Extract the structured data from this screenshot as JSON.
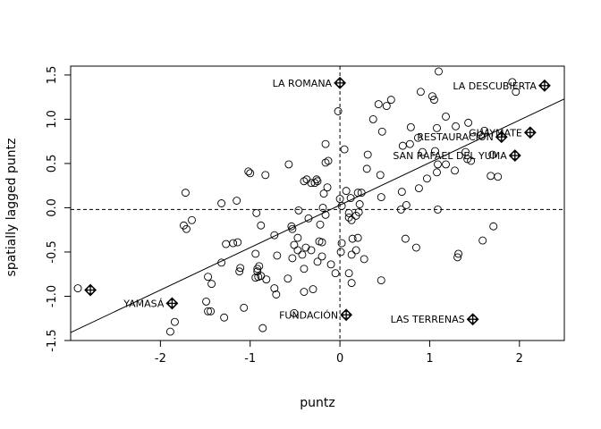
{
  "chart_data": {
    "type": "scatter",
    "title": "",
    "xlabel": "puntz",
    "ylabel": "spatially lagged puntz",
    "xlim": [
      -3.0,
      2.5
    ],
    "ylim": [
      -1.5,
      1.6
    ],
    "xticks": [
      -2,
      -1,
      0,
      1,
      2
    ],
    "yticks": [
      -1.5,
      -1.0,
      -0.5,
      0.0,
      0.5,
      1.0,
      1.5
    ],
    "x_tick_labels": [
      "-2",
      "-1",
      "0",
      "1",
      "2"
    ],
    "y_tick_labels": [
      "-1.5",
      "-1.0",
      "-0.5",
      "0.0",
      "0.5",
      "1.0",
      "1.5"
    ],
    "reference_lines": {
      "vline_x": 0.0,
      "hline_y": -0.02,
      "style": "dashed"
    },
    "regression_line": {
      "intercept": 0.03,
      "slope": 0.48
    },
    "points": [
      {
        "x": 1.1,
        "y": 1.54
      },
      {
        "x": 1.92,
        "y": 1.42
      },
      {
        "x": 1.96,
        "y": 1.31
      },
      {
        "x": 0.9,
        "y": 1.31
      },
      {
        "x": 1.03,
        "y": 1.26
      },
      {
        "x": 1.05,
        "y": 1.22
      },
      {
        "x": 0.57,
        "y": 1.22
      },
      {
        "x": 0.52,
        "y": 1.15
      },
      {
        "x": 0.43,
        "y": 1.17
      },
      {
        "x": -0.02,
        "y": 1.09
      },
      {
        "x": 1.18,
        "y": 1.03
      },
      {
        "x": 0.37,
        "y": 1.0
      },
      {
        "x": 1.43,
        "y": 0.96
      },
      {
        "x": 1.29,
        "y": 0.92
      },
      {
        "x": 0.79,
        "y": 0.91
      },
      {
        "x": 1.08,
        "y": 0.9
      },
      {
        "x": 0.47,
        "y": 0.86
      },
      {
        "x": 1.61,
        "y": 0.87
      },
      {
        "x": 1.57,
        "y": 0.82
      },
      {
        "x": 0.87,
        "y": 0.79
      },
      {
        "x": 0.78,
        "y": 0.72
      },
      {
        "x": 0.7,
        "y": 0.7
      },
      {
        "x": -0.16,
        "y": 0.72
      },
      {
        "x": 0.05,
        "y": 0.66
      },
      {
        "x": 1.06,
        "y": 0.64
      },
      {
        "x": 0.92,
        "y": 0.63
      },
      {
        "x": 1.4,
        "y": 0.63
      },
      {
        "x": 1.7,
        "y": 0.6
      },
      {
        "x": 0.31,
        "y": 0.6
      },
      {
        "x": 1.42,
        "y": 0.55
      },
      {
        "x": 1.46,
        "y": 0.53
      },
      {
        "x": -0.13,
        "y": 0.53
      },
      {
        "x": -0.16,
        "y": 0.51
      },
      {
        "x": -0.57,
        "y": 0.49
      },
      {
        "x": 1.09,
        "y": 0.49
      },
      {
        "x": 1.18,
        "y": 0.49
      },
      {
        "x": 0.3,
        "y": 0.44
      },
      {
        "x": 1.28,
        "y": 0.42
      },
      {
        "x": 1.08,
        "y": 0.4
      },
      {
        "x": -1.02,
        "y": 0.41
      },
      {
        "x": -1.0,
        "y": 0.39
      },
      {
        "x": -0.83,
        "y": 0.37
      },
      {
        "x": 0.45,
        "y": 0.37
      },
      {
        "x": 1.68,
        "y": 0.36
      },
      {
        "x": 1.76,
        "y": 0.35
      },
      {
        "x": 0.97,
        "y": 0.33
      },
      {
        "x": -0.37,
        "y": 0.32
      },
      {
        "x": -0.26,
        "y": 0.32
      },
      {
        "x": -0.4,
        "y": 0.3
      },
      {
        "x": -0.28,
        "y": 0.28
      },
      {
        "x": -0.32,
        "y": 0.28
      },
      {
        "x": -0.25,
        "y": 0.3
      },
      {
        "x": 0.88,
        "y": 0.22
      },
      {
        "x": -0.14,
        "y": 0.23
      },
      {
        "x": 0.69,
        "y": 0.18
      },
      {
        "x": 0.24,
        "y": 0.17
      },
      {
        "x": 0.2,
        "y": 0.17
      },
      {
        "x": 0.07,
        "y": 0.19
      },
      {
        "x": -1.72,
        "y": 0.17
      },
      {
        "x": -0.18,
        "y": 0.16
      },
      {
        "x": 0.46,
        "y": 0.12
      },
      {
        "x": 0.12,
        "y": 0.11
      },
      {
        "x": 0.0,
        "y": 0.1
      },
      {
        "x": -1.15,
        "y": 0.08
      },
      {
        "x": 0.22,
        "y": 0.04
      },
      {
        "x": -1.32,
        "y": 0.05
      },
      {
        "x": 0.74,
        "y": 0.03
      },
      {
        "x": 0.02,
        "y": 0.02
      },
      {
        "x": -0.19,
        "y": 0.0
      },
      {
        "x": 0.68,
        "y": -0.02
      },
      {
        "x": 1.09,
        "y": -0.02
      },
      {
        "x": -0.46,
        "y": -0.03
      },
      {
        "x": 0.21,
        "y": -0.05
      },
      {
        "x": 0.1,
        "y": -0.06
      },
      {
        "x": -0.93,
        "y": -0.06
      },
      {
        "x": -0.16,
        "y": -0.08
      },
      {
        "x": 0.18,
        "y": -0.09
      },
      {
        "x": -0.35,
        "y": -0.12
      },
      {
        "x": 0.1,
        "y": -0.11
      },
      {
        "x": 0.13,
        "y": -0.14
      },
      {
        "x": -1.65,
        "y": -0.14
      },
      {
        "x": -0.88,
        "y": -0.2
      },
      {
        "x": -0.54,
        "y": -0.21
      },
      {
        "x": -1.74,
        "y": -0.2
      },
      {
        "x": -0.22,
        "y": -0.19
      },
      {
        "x": -0.53,
        "y": -0.24
      },
      {
        "x": -1.71,
        "y": -0.24
      },
      {
        "x": 1.71,
        "y": -0.21
      },
      {
        "x": -0.73,
        "y": -0.31
      },
      {
        "x": -0.47,
        "y": -0.34
      },
      {
        "x": 0.73,
        "y": -0.35
      },
      {
        "x": 0.2,
        "y": -0.34
      },
      {
        "x": 0.14,
        "y": -0.35
      },
      {
        "x": 1.59,
        "y": -0.37
      },
      {
        "x": -0.23,
        "y": -0.38
      },
      {
        "x": -0.2,
        "y": -0.39
      },
      {
        "x": 0.02,
        "y": -0.4
      },
      {
        "x": -1.14,
        "y": -0.39
      },
      {
        "x": -1.19,
        "y": -0.4
      },
      {
        "x": -1.27,
        "y": -0.41
      },
      {
        "x": -0.51,
        "y": -0.42
      },
      {
        "x": -0.38,
        "y": -0.45
      },
      {
        "x": 0.85,
        "y": -0.45
      },
      {
        "x": -0.47,
        "y": -0.48
      },
      {
        "x": -0.32,
        "y": -0.48
      },
      {
        "x": 0.18,
        "y": -0.48
      },
      {
        "x": 0.01,
        "y": -0.5
      },
      {
        "x": -0.94,
        "y": -0.52
      },
      {
        "x": 0.13,
        "y": -0.53
      },
      {
        "x": -0.42,
        "y": -0.53
      },
      {
        "x": 1.32,
        "y": -0.52
      },
      {
        "x": -0.7,
        "y": -0.54
      },
      {
        "x": -0.2,
        "y": -0.55
      },
      {
        "x": -0.53,
        "y": -0.57
      },
      {
        "x": 1.31,
        "y": -0.56
      },
      {
        "x": 0.27,
        "y": -0.58
      },
      {
        "x": -0.25,
        "y": -0.61
      },
      {
        "x": -1.32,
        "y": -0.62
      },
      {
        "x": -0.1,
        "y": -0.64
      },
      {
        "x": -0.9,
        "y": -0.66
      },
      {
        "x": -0.92,
        "y": -0.69
      },
      {
        "x": -1.11,
        "y": -0.68
      },
      {
        "x": -0.4,
        "y": -0.69
      },
      {
        "x": -1.12,
        "y": -0.72
      },
      {
        "x": -0.92,
        "y": -0.72
      },
      {
        "x": -0.05,
        "y": -0.74
      },
      {
        "x": 0.1,
        "y": -0.74
      },
      {
        "x": -0.88,
        "y": -0.77
      },
      {
        "x": -0.91,
        "y": -0.78
      },
      {
        "x": -0.94,
        "y": -0.79
      },
      {
        "x": -1.47,
        "y": -0.78
      },
      {
        "x": -0.58,
        "y": -0.8
      },
      {
        "x": -0.82,
        "y": -0.81
      },
      {
        "x": 0.46,
        "y": -0.82
      },
      {
        "x": 0.13,
        "y": -0.85
      },
      {
        "x": -1.43,
        "y": -0.86
      },
      {
        "x": -2.92,
        "y": -0.91
      },
      {
        "x": -0.73,
        "y": -0.91
      },
      {
        "x": -0.3,
        "y": -0.92
      },
      {
        "x": -0.4,
        "y": -0.95
      },
      {
        "x": -0.71,
        "y": -0.98
      },
      {
        "x": -1.49,
        "y": -1.06
      },
      {
        "x": -1.07,
        "y": -1.13
      },
      {
        "x": -1.47,
        "y": -1.17
      },
      {
        "x": -1.44,
        "y": -1.17
      },
      {
        "x": -0.51,
        "y": -1.19
      },
      {
        "x": -1.29,
        "y": -1.24
      },
      {
        "x": -1.84,
        "y": -1.29
      },
      {
        "x": -0.86,
        "y": -1.36
      },
      {
        "x": -1.89,
        "y": -1.4
      }
    ],
    "labeled_points": [
      {
        "label": "LA ROMANA",
        "x": 0.0,
        "y": 1.41,
        "side": "left"
      },
      {
        "label": "LA DESCUBIERTA",
        "x": 2.28,
        "y": 1.38,
        "side": "left"
      },
      {
        "label": "GUAYMATE",
        "x": 2.12,
        "y": 0.85,
        "side": "left"
      },
      {
        "label": "RESTAURACION",
        "x": 1.8,
        "y": 0.8,
        "side": "left"
      },
      {
        "label": "SAN RAFAEL DEL YUMA",
        "x": 1.95,
        "y": 0.59,
        "side": "left"
      },
      {
        "label": "YAMASÁ",
        "x": -1.87,
        "y": -1.08,
        "side": "left"
      },
      {
        "label": "FUNDACIÓN",
        "x": 0.07,
        "y": -1.21,
        "side": "left"
      },
      {
        "label": "LAS TERRENAS",
        "x": 1.48,
        "y": -1.26,
        "side": "left"
      },
      {
        "label": "",
        "x": -2.78,
        "y": -0.93,
        "side": "none"
      }
    ]
  }
}
